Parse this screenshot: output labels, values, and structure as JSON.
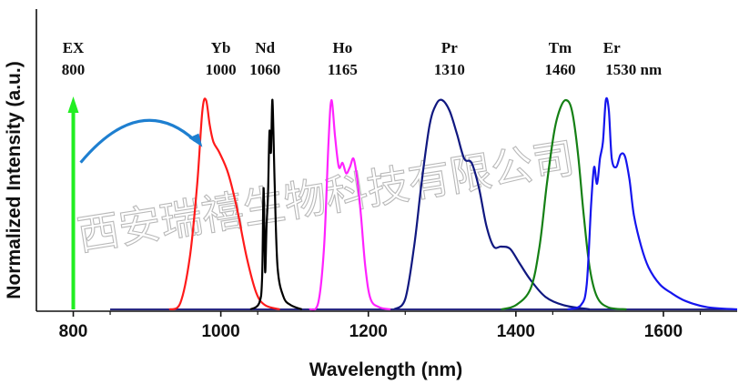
{
  "chart_data": {
    "type": "line",
    "xlabel": "Wavelength (nm)",
    "ylabel": "Normalized Intensity (a.u.)",
    "xlim": [
      750,
      1700
    ],
    "ylim": [
      0,
      1.07
    ],
    "xticks": [
      "800",
      "1000",
      "1200",
      "1400",
      "1600"
    ],
    "ytick_labels": false,
    "grid": false,
    "watermark": "西安瑞禧生物科技有限公司",
    "peak_labels": [
      {
        "name": "EX",
        "value": "800",
        "x": 800
      },
      {
        "name": "Yb",
        "value": "1000",
        "x": 1000
      },
      {
        "name": "Nd",
        "value": "1060",
        "x": 1060
      },
      {
        "name": "Ho",
        "value": "1165",
        "x": 1165
      },
      {
        "name": "Pr",
        "value": "1310",
        "x": 1310
      },
      {
        "name": "Tm",
        "value": "1460",
        "x": 1460
      },
      {
        "name": "Er",
        "value": "1530 nm",
        "x": 1530
      }
    ],
    "excitation_arrow": {
      "x": 800,
      "color": "#22ee22"
    },
    "transfer_arrow": {
      "from": [
        810,
        0.78
      ],
      "to": [
        975,
        0.78
      ],
      "color": "#1e7fd0"
    },
    "series": [
      {
        "color": "#ff1a1a",
        "points": [
          [
            930,
            0
          ],
          [
            945,
            0.03
          ],
          [
            958,
            0.25
          ],
          [
            968,
            0.6
          ],
          [
            975,
            0.95
          ],
          [
            980,
            1.0
          ],
          [
            985,
            0.88
          ],
          [
            990,
            0.8
          ],
          [
            998,
            0.75
          ],
          [
            1010,
            0.65
          ],
          [
            1022,
            0.48
          ],
          [
            1035,
            0.25
          ],
          [
            1048,
            0.08
          ],
          [
            1060,
            0.02
          ],
          [
            1080,
            0
          ]
        ]
      },
      {
        "color": "#000000",
        "points": [
          [
            1040,
            0
          ],
          [
            1052,
            0.03
          ],
          [
            1056,
            0.15
          ],
          [
            1058,
            0.58
          ],
          [
            1060,
            0.18
          ],
          [
            1062,
            0.4
          ],
          [
            1064,
            0.55
          ],
          [
            1066,
            0.85
          ],
          [
            1068,
            0.75
          ],
          [
            1070,
            1.0
          ],
          [
            1073,
            0.6
          ],
          [
            1077,
            0.2
          ],
          [
            1085,
            0.06
          ],
          [
            1095,
            0.02
          ],
          [
            1110,
            0
          ]
        ]
      },
      {
        "color": "#ff22ff",
        "points": [
          [
            1120,
            0
          ],
          [
            1132,
            0.03
          ],
          [
            1140,
            0.3
          ],
          [
            1146,
            0.8
          ],
          [
            1150,
            1.0
          ],
          [
            1155,
            0.82
          ],
          [
            1160,
            0.68
          ],
          [
            1165,
            0.7
          ],
          [
            1170,
            0.65
          ],
          [
            1175,
            0.68
          ],
          [
            1180,
            0.72
          ],
          [
            1185,
            0.62
          ],
          [
            1190,
            0.45
          ],
          [
            1196,
            0.2
          ],
          [
            1203,
            0.05
          ],
          [
            1215,
            0.01
          ],
          [
            1230,
            0
          ]
        ]
      },
      {
        "color": "#101880",
        "points": [
          [
            1235,
            0
          ],
          [
            1250,
            0.05
          ],
          [
            1262,
            0.3
          ],
          [
            1272,
            0.6
          ],
          [
            1283,
            0.88
          ],
          [
            1292,
            0.98
          ],
          [
            1300,
            1.0
          ],
          [
            1310,
            0.95
          ],
          [
            1320,
            0.84
          ],
          [
            1330,
            0.72
          ],
          [
            1340,
            0.7
          ],
          [
            1350,
            0.58
          ],
          [
            1360,
            0.4
          ],
          [
            1370,
            0.3
          ],
          [
            1380,
            0.3
          ],
          [
            1392,
            0.29
          ],
          [
            1405,
            0.22
          ],
          [
            1420,
            0.14
          ],
          [
            1440,
            0.06
          ],
          [
            1465,
            0.02
          ],
          [
            1500,
            0
          ]
        ]
      },
      {
        "color": "#158015",
        "points": [
          [
            1380,
            0
          ],
          [
            1400,
            0.02
          ],
          [
            1420,
            0.1
          ],
          [
            1432,
            0.3
          ],
          [
            1442,
            0.6
          ],
          [
            1452,
            0.85
          ],
          [
            1460,
            0.96
          ],
          [
            1468,
            1.0
          ],
          [
            1476,
            0.95
          ],
          [
            1484,
            0.75
          ],
          [
            1492,
            0.45
          ],
          [
            1500,
            0.2
          ],
          [
            1510,
            0.06
          ],
          [
            1525,
            0.01
          ],
          [
            1550,
            0
          ]
        ]
      },
      {
        "color": "#1515ee",
        "points": [
          [
            1470,
            0
          ],
          [
            1488,
            0.02
          ],
          [
            1496,
            0.12
          ],
          [
            1502,
            0.5
          ],
          [
            1506,
            0.68
          ],
          [
            1510,
            0.6
          ],
          [
            1514,
            0.72
          ],
          [
            1518,
            0.8
          ],
          [
            1522,
            1.0
          ],
          [
            1526,
            0.95
          ],
          [
            1530,
            0.72
          ],
          [
            1536,
            0.68
          ],
          [
            1542,
            0.74
          ],
          [
            1548,
            0.73
          ],
          [
            1554,
            0.62
          ],
          [
            1560,
            0.45
          ],
          [
            1570,
            0.3
          ],
          [
            1580,
            0.2
          ],
          [
            1595,
            0.12
          ],
          [
            1610,
            0.08
          ],
          [
            1630,
            0.04
          ],
          [
            1660,
            0.01
          ],
          [
            1700,
            0
          ]
        ]
      }
    ]
  }
}
